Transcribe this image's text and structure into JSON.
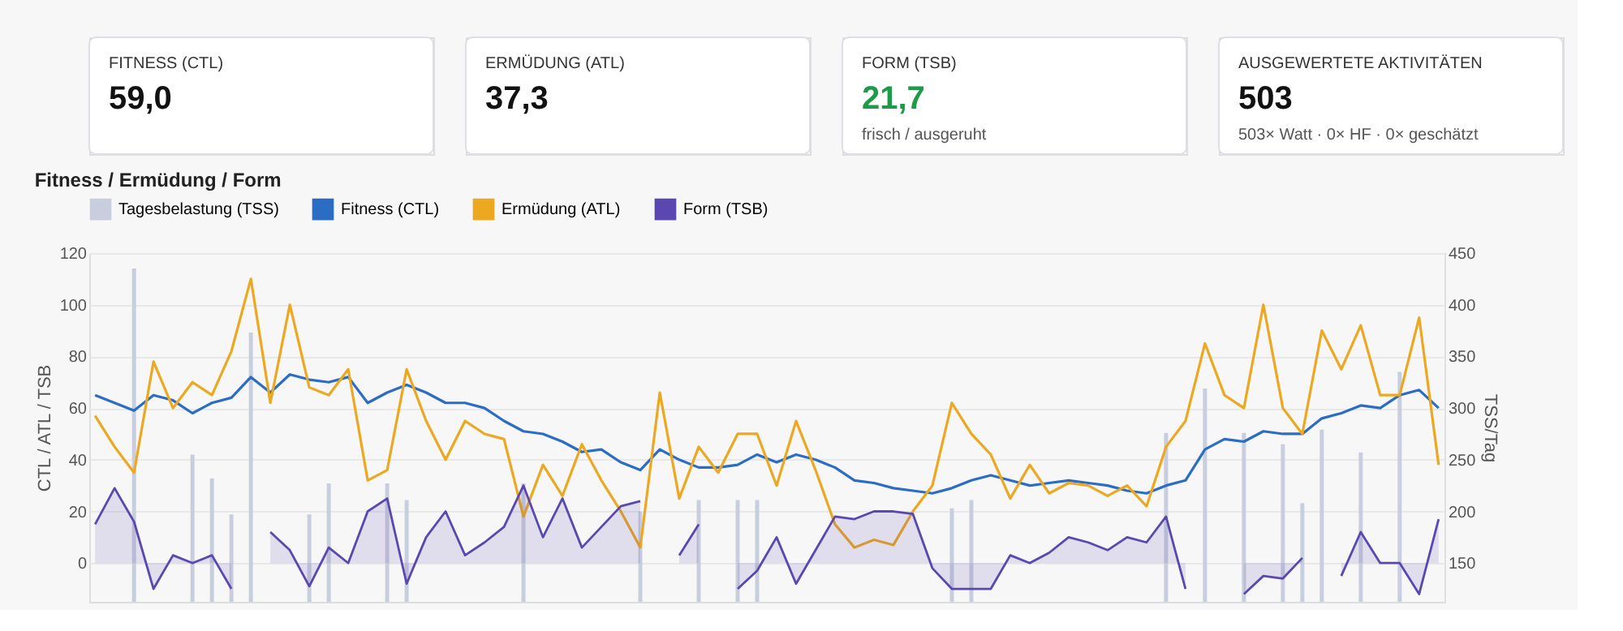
{
  "chart_data": [
    {
      "type": "other",
      "title": "FITNESS (CTL)",
      "annotations": [
        "59,0"
      ]
    },
    {
      "type": "other",
      "title": "ERMÜDUNG (ATL)",
      "annotations": [
        "37,3"
      ]
    },
    {
      "type": "other",
      "title": "FORM (TSB)",
      "annotations": [
        "21,7",
        "frisch / ausgeruht"
      ],
      "color": "#1e9b48"
    },
    {
      "type": "other",
      "title": "AUSGEWERTETE AKTIVITÄTEN",
      "annotations": [
        "503",
        "503× Watt · 0× HF · 0× geschätzt"
      ]
    },
    {
      "type": "line",
      "title": "Fitness / Ermüdung / Form",
      "ylabel": "CTL / ATL / TSB",
      "y2label": "TSS/Tag",
      "categories": [
        null,
        null,
        null,
        null,
        null,
        null,
        null,
        null,
        null,
        null,
        null,
        null,
        null,
        null,
        null,
        null,
        null,
        null,
        null,
        null,
        null,
        null,
        null,
        null,
        null,
        null,
        null,
        null,
        null,
        null,
        null,
        null,
        null,
        null,
        null,
        null,
        null,
        null,
        null,
        null,
        null,
        null,
        null,
        null,
        null,
        null,
        null,
        null,
        null,
        null,
        null,
        null,
        null,
        null,
        null,
        null,
        null,
        null,
        null,
        null,
        null,
        null,
        null,
        null,
        null,
        null,
        null,
        null,
        null,
        null
      ],
      "ylim": [
        -15,
        120
      ],
      "yticks": [
        0,
        20,
        40,
        60,
        80,
        100,
        120
      ],
      "y2lim": [
        112.5,
        450
      ],
      "y2ticks": [
        150,
        200,
        250,
        300,
        350,
        400,
        450
      ],
      "grid": "y",
      "legend": "top",
      "tick_labels": "y",
      "marker": "none",
      "line_style": "solid",
      "series": [
        {
          "name": "Tagesbelastung (TSS)",
          "type": "bar",
          "axis": "y2",
          "color": "#c8cedd",
          "values": [
            null,
            null,
            435,
            null,
            null,
            255,
            232,
            197,
            373,
            null,
            null,
            197,
            227,
            null,
            null,
            227,
            211,
            null,
            null,
            null,
            null,
            null,
            227,
            null,
            null,
            null,
            null,
            null,
            200,
            null,
            null,
            211,
            null,
            211,
            211,
            null,
            null,
            null,
            null,
            null,
            null,
            null,
            null,
            null,
            203,
            211,
            null,
            null,
            null,
            null,
            null,
            null,
            null,
            null,
            null,
            276,
            null,
            319,
            null,
            276,
            null,
            265,
            208,
            279,
            null,
            257,
            null,
            335,
            null,
            null
          ]
        },
        {
          "name": "Fitness (CTL)",
          "type": "line",
          "color": "#2b6cc4",
          "values": [
            65,
            62,
            59,
            65,
            63,
            58,
            62,
            64,
            72,
            66,
            73,
            71,
            70,
            72,
            62,
            66,
            69,
            66,
            62,
            62,
            60,
            55,
            51,
            50,
            47,
            43,
            44,
            39,
            36,
            44,
            40,
            37,
            37,
            38,
            42,
            39,
            42,
            40,
            37,
            32,
            31,
            29,
            28,
            27,
            29,
            32,
            34,
            32,
            30,
            31,
            32,
            31,
            30,
            28,
            27,
            30,
            32,
            44,
            48,
            47,
            51,
            50,
            50,
            56,
            58,
            61,
            60,
            65,
            67,
            60
          ]
        },
        {
          "name": "Ermüdung (ATL)",
          "type": "line",
          "color": "#eca820",
          "values": [
            57,
            45,
            35,
            78,
            60,
            70,
            65,
            82,
            110,
            62,
            100,
            68,
            65,
            75,
            32,
            36,
            75,
            55,
            40,
            55,
            50,
            48,
            18,
            38,
            26,
            46,
            32,
            20,
            6,
            66,
            25,
            45,
            35,
            50,
            50,
            30,
            55,
            36,
            15,
            6,
            9,
            7,
            20,
            30,
            62,
            50,
            42,
            25,
            38,
            27,
            31,
            30,
            26,
            30,
            22,
            45,
            55,
            85,
            65,
            60,
            100,
            60,
            50,
            90,
            75,
            92,
            65,
            65,
            95,
            38
          ]
        },
        {
          "name": "Form (TSB)",
          "type": "area",
          "color": "#5b47b0",
          "values": [
            15,
            29,
            16,
            -10,
            3,
            0,
            3,
            -10,
            null,
            12,
            5,
            -9,
            6,
            0,
            20,
            25,
            -8,
            10,
            20,
            3,
            8,
            14,
            30,
            10,
            25,
            6,
            14,
            22,
            24,
            null,
            3,
            15,
            null,
            -10,
            -3,
            10,
            -8,
            5,
            18,
            17,
            20,
            20,
            19,
            -2,
            -10,
            -10,
            -10,
            3,
            0,
            4,
            10,
            8,
            5,
            10,
            8,
            18,
            -10,
            null,
            null,
            -12,
            -5,
            -6,
            2,
            null,
            -5,
            12,
            0,
            0,
            -12,
            17
          ]
        }
      ]
    }
  ]
}
